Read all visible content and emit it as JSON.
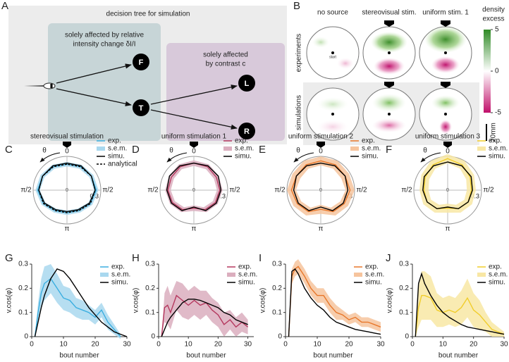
{
  "panel_a": {
    "label": "A",
    "title": "decision tree for simulation",
    "box1_lines": [
      "solely affected by relative",
      "intensity change δI/I"
    ],
    "box2_lines": [
      "solely affected",
      "by contrast c"
    ],
    "nodes": [
      "F",
      "T",
      "L",
      "R"
    ]
  },
  "panel_b": {
    "label": "B",
    "columns": [
      "no source",
      "stereovisual stim.",
      "uniform stim. 1"
    ],
    "rows": [
      "experiments",
      "simulations"
    ],
    "start_label": "start",
    "colorbar": {
      "title": [
        "density",
        "excess"
      ],
      "lim": [
        -5,
        5
      ],
      "ticks": [
        5,
        0,
        -5
      ]
    },
    "scale_bar": "20mm"
  },
  "chart_data": [
    {
      "type": "polar",
      "panel_label": "C",
      "title": "stereovisual stimulation",
      "theta_label": "θ",
      "theta": [
        0,
        0.5236,
        1.0472,
        1.5708,
        2.0944,
        2.618,
        3.1416,
        3.6652,
        4.1888,
        4.7124,
        5.236,
        5.7596
      ],
      "thetaticks": [
        0,
        {
          "value": 1.5708,
          "label": "π/2"
        },
        {
          "value": 3.1416,
          "label": "π"
        },
        {
          "value": 4.7124,
          "label": "π/2"
        }
      ],
      "rlim": [
        0,
        0.3
      ],
      "rticks": [
        0,
        0.3
      ],
      "series": [
        {
          "name": "exp.",
          "color": "#3aaee0",
          "values": [
            0.23,
            0.24,
            0.25,
            0.26,
            0.24,
            0.21,
            0.2,
            0.21,
            0.24,
            0.26,
            0.25,
            0.24
          ]
        },
        {
          "name": "s.e.m.",
          "color": "#a9d8ef",
          "values": [
            0.02,
            0.02,
            0.02,
            0.02,
            0.02,
            0.02,
            0.02,
            0.02,
            0.02,
            0.02,
            0.02,
            0.02
          ]
        },
        {
          "name": "simu.",
          "color": "#000000",
          "values": [
            0.24,
            0.25,
            0.25,
            0.25,
            0.23,
            0.2,
            0.19,
            0.2,
            0.23,
            0.25,
            0.25,
            0.25
          ]
        },
        {
          "name": "analytical",
          "color": "#000000",
          "dashed": true,
          "values": [
            0.23,
            0.24,
            0.25,
            0.25,
            0.24,
            0.21,
            0.2,
            0.21,
            0.24,
            0.25,
            0.25,
            0.24
          ]
        }
      ]
    },
    {
      "type": "polar",
      "panel_label": "D",
      "title": "uniform stimulation 1",
      "theta_label": "θ",
      "theta": [
        0,
        0.5236,
        1.0472,
        1.5708,
        2.0944,
        2.618,
        3.1416,
        3.6652,
        4.1888,
        4.7124,
        5.236,
        5.7596
      ],
      "thetaticks": [
        0,
        {
          "value": 1.5708,
          "label": "π/2"
        },
        {
          "value": 3.1416,
          "label": "π"
        },
        {
          "value": 4.7124,
          "label": "π/2"
        }
      ],
      "rlim": [
        0,
        0.3
      ],
      "rticks": [
        0,
        0.3
      ],
      "series": [
        {
          "name": "exp.",
          "color": "#b5395f",
          "values": [
            0.24,
            0.24,
            0.23,
            0.23,
            0.22,
            0.2,
            0.16,
            0.2,
            0.22,
            0.23,
            0.23,
            0.24
          ]
        },
        {
          "name": "s.e.m.",
          "color": "#dbaebe",
          "values": [
            0.025,
            0.025,
            0.025,
            0.025,
            0.025,
            0.025,
            0.025,
            0.025,
            0.025,
            0.025,
            0.025,
            0.025
          ]
        },
        {
          "name": "simu.",
          "color": "#000000",
          "values": [
            0.24,
            0.25,
            0.25,
            0.24,
            0.23,
            0.21,
            0.15,
            0.21,
            0.23,
            0.24,
            0.25,
            0.25
          ]
        }
      ]
    },
    {
      "type": "polar",
      "panel_label": "E",
      "title": "uniform stimulation 2",
      "theta_label": "θ",
      "theta": [
        0,
        0.5236,
        1.0472,
        1.5708,
        2.0944,
        2.618,
        3.1416,
        3.6652,
        4.1888,
        4.7124,
        5.236,
        5.7596
      ],
      "thetaticks": [
        0,
        {
          "value": 1.5708,
          "label": "π/2"
        },
        {
          "value": 3.1416,
          "label": "π"
        },
        {
          "value": 4.7124,
          "label": "π/2"
        }
      ],
      "rlim": [
        0,
        0.3
      ],
      "rticks": [
        0,
        0.3
      ],
      "series": [
        {
          "name": "exp.",
          "color": "#e8772a",
          "values": [
            0.26,
            0.26,
            0.25,
            0.26,
            0.24,
            0.22,
            0.17,
            0.22,
            0.24,
            0.26,
            0.25,
            0.26
          ]
        },
        {
          "name": "s.e.m.",
          "color": "#f6c49d",
          "values": [
            0.04,
            0.04,
            0.04,
            0.04,
            0.04,
            0.04,
            0.04,
            0.04,
            0.04,
            0.04,
            0.04,
            0.04
          ]
        },
        {
          "name": "simu.",
          "color": "#000000",
          "values": [
            0.24,
            0.25,
            0.25,
            0.24,
            0.23,
            0.21,
            0.15,
            0.21,
            0.23,
            0.24,
            0.25,
            0.25
          ]
        }
      ]
    },
    {
      "type": "polar",
      "panel_label": "F",
      "title": "uniform stimulation 3",
      "theta_label": "θ",
      "theta": [
        0,
        0.5236,
        1.0472,
        1.5708,
        2.0944,
        2.618,
        3.1416,
        3.6652,
        4.1888,
        4.7124,
        5.236,
        5.7596
      ],
      "thetaticks": [
        0,
        {
          "value": 1.5708,
          "label": "π/2"
        },
        {
          "value": 3.1416,
          "label": "π"
        },
        {
          "value": 4.7124,
          "label": "π/2"
        }
      ],
      "rlim": [
        0,
        0.3
      ],
      "rticks": [
        0,
        0.3
      ],
      "series": [
        {
          "name": "exp.",
          "color": "#f1cd2a",
          "values": [
            0.28,
            0.26,
            0.23,
            0.21,
            0.21,
            0.19,
            0.16,
            0.19,
            0.21,
            0.21,
            0.23,
            0.26
          ]
        },
        {
          "name": "s.e.m.",
          "color": "#f8e7a4",
          "values": [
            0.04,
            0.04,
            0.04,
            0.04,
            0.04,
            0.04,
            0.04,
            0.04,
            0.04,
            0.04,
            0.04,
            0.04
          ]
        },
        {
          "name": "simu.",
          "color": "#000000",
          "values": [
            0.25,
            0.25,
            0.24,
            0.22,
            0.21,
            0.19,
            0.15,
            0.19,
            0.21,
            0.22,
            0.24,
            0.25
          ]
        }
      ]
    },
    {
      "type": "line",
      "panel_label": "G",
      "xlabel": "bout number",
      "ylabel": "v.cos(φ)",
      "x": [
        1,
        2,
        3,
        4,
        6,
        8,
        10,
        12,
        14,
        16,
        18,
        20,
        22,
        24,
        26,
        28,
        30
      ],
      "xlim": [
        0,
        30
      ],
      "xticks": [
        0,
        10,
        20,
        30
      ],
      "ylim": [
        0,
        0.3
      ],
      "yticks": [
        0,
        0.1,
        0.2,
        0.3
      ],
      "series": [
        {
          "name": "exp.",
          "color": "#3aaee0",
          "values": [
            0,
            0.1,
            0.18,
            0.22,
            0.24,
            0.2,
            0.16,
            0.15,
            0.12,
            0.11,
            0.1,
            0.08,
            0.11,
            0.06,
            0.03,
            0,
            null
          ]
        },
        {
          "name": "s.e.m.",
          "color": "#a9d8ef",
          "values": [
            0,
            0.04,
            0.06,
            0.07,
            0.06,
            0.06,
            0.05,
            0.05,
            0.04,
            0.04,
            0.03,
            0.03,
            0.03,
            0.03,
            0.02,
            0.01,
            null
          ]
        },
        {
          "name": "simu.",
          "color": "#000000",
          "values": [
            0,
            0.06,
            0.12,
            0.17,
            0.24,
            0.28,
            0.27,
            0.24,
            0.2,
            0.16,
            0.12,
            0.09,
            0.06,
            0.04,
            0.02,
            0.01,
            0
          ]
        }
      ]
    },
    {
      "type": "line",
      "panel_label": "H",
      "xlabel": "bout number",
      "ylabel": "v.cos(φ)",
      "x": [
        1,
        2,
        3,
        4,
        6,
        8,
        10,
        12,
        14,
        16,
        18,
        20,
        22,
        24,
        26,
        28,
        30
      ],
      "xlim": [
        0,
        32
      ],
      "xticks": [
        0,
        10,
        20,
        30
      ],
      "ylim": [
        0,
        0.3
      ],
      "yticks": [
        0,
        0.1,
        0.2,
        0.3
      ],
      "series": [
        {
          "name": "exp.",
          "color": "#b5395f",
          "values": [
            0,
            0.12,
            0.13,
            0.1,
            0.17,
            0.15,
            0.13,
            0.15,
            0.13,
            0.14,
            0.11,
            0.09,
            0.05,
            0.07,
            0.04,
            0.06,
            0.04
          ]
        },
        {
          "name": "s.e.m.",
          "color": "#dbaebe",
          "values": [
            0,
            0.06,
            0.08,
            0.07,
            0.06,
            0.07,
            0.06,
            0.06,
            0.06,
            0.05,
            0.05,
            0.05,
            0.05,
            0.04,
            0.04,
            0.04,
            0.03
          ]
        },
        {
          "name": "simu.",
          "color": "#000000",
          "values": [
            0,
            0.03,
            0.06,
            0.08,
            0.11,
            0.14,
            0.155,
            0.155,
            0.15,
            0.14,
            0.13,
            0.12,
            0.1,
            0.09,
            0.07,
            0.06,
            0.05
          ]
        }
      ]
    },
    {
      "type": "line",
      "panel_label": "I",
      "xlabel": "bout number",
      "ylabel": "v.cos(φ)",
      "x": [
        1,
        2,
        3,
        4,
        6,
        8,
        10,
        12,
        14,
        16,
        18,
        20,
        22,
        24,
        26,
        28,
        30
      ],
      "xlim": [
        0,
        30
      ],
      "xticks": [
        0,
        10,
        20,
        30
      ],
      "ylim": [
        0,
        0.3
      ],
      "yticks": [
        0,
        0.1,
        0.2,
        0.3
      ],
      "series": [
        {
          "name": "exp.",
          "color": "#e8772a",
          "values": [
            0,
            0.25,
            0.28,
            0.29,
            0.25,
            0.2,
            0.17,
            0.17,
            0.13,
            0.1,
            0.09,
            0.07,
            0.08,
            0.06,
            0.06,
            0.05,
            0.04
          ]
        },
        {
          "name": "s.e.m.",
          "color": "#f6c49d",
          "values": [
            0,
            0.03,
            0.03,
            0.03,
            0.03,
            0.03,
            0.03,
            0.03,
            0.03,
            0.03,
            0.02,
            0.02,
            0.02,
            0.02,
            0.02,
            0.02,
            0.02
          ]
        },
        {
          "name": "simu.",
          "color": "#000000",
          "values": [
            0,
            0.27,
            0.28,
            0.26,
            0.2,
            0.16,
            0.13,
            0.11,
            0.08,
            0.06,
            0.05,
            0.04,
            0.03,
            0.025,
            0.02,
            0.015,
            0.01
          ]
        }
      ]
    },
    {
      "type": "line",
      "panel_label": "J",
      "xlabel": "bout number",
      "ylabel": "v.cos(φ)",
      "x": [
        1,
        2,
        3,
        4,
        6,
        8,
        10,
        12,
        14,
        16,
        18,
        20,
        22,
        24,
        26,
        28,
        30
      ],
      "xlim": [
        0,
        30
      ],
      "xticks": [
        0,
        10,
        20,
        30
      ],
      "ylim": [
        0,
        0.3
      ],
      "yticks": [
        0,
        0.1,
        0.2,
        0.3
      ],
      "series": [
        {
          "name": "exp.",
          "color": "#f1cd2a",
          "values": [
            0,
            0.12,
            0.17,
            0.17,
            0.16,
            0.11,
            0.1,
            0.11,
            0.1,
            0.12,
            0.16,
            0.11,
            0.09,
            0.06,
            0.03,
            0.02,
            0.01
          ]
        },
        {
          "name": "s.e.m.",
          "color": "#f8e7a4",
          "values": [
            0,
            0.08,
            0.1,
            0.1,
            0.09,
            0.07,
            0.06,
            0.06,
            0.06,
            0.07,
            0.08,
            0.07,
            0.06,
            0.04,
            0.03,
            0.02,
            0.01
          ]
        },
        {
          "name": "simu.",
          "color": "#000000",
          "values": [
            0,
            0.22,
            0.26,
            0.22,
            0.17,
            0.13,
            0.1,
            0.08,
            0.065,
            0.05,
            0.04,
            0.035,
            0.03,
            0.025,
            0.02,
            0.015,
            0.01
          ]
        }
      ]
    }
  ]
}
